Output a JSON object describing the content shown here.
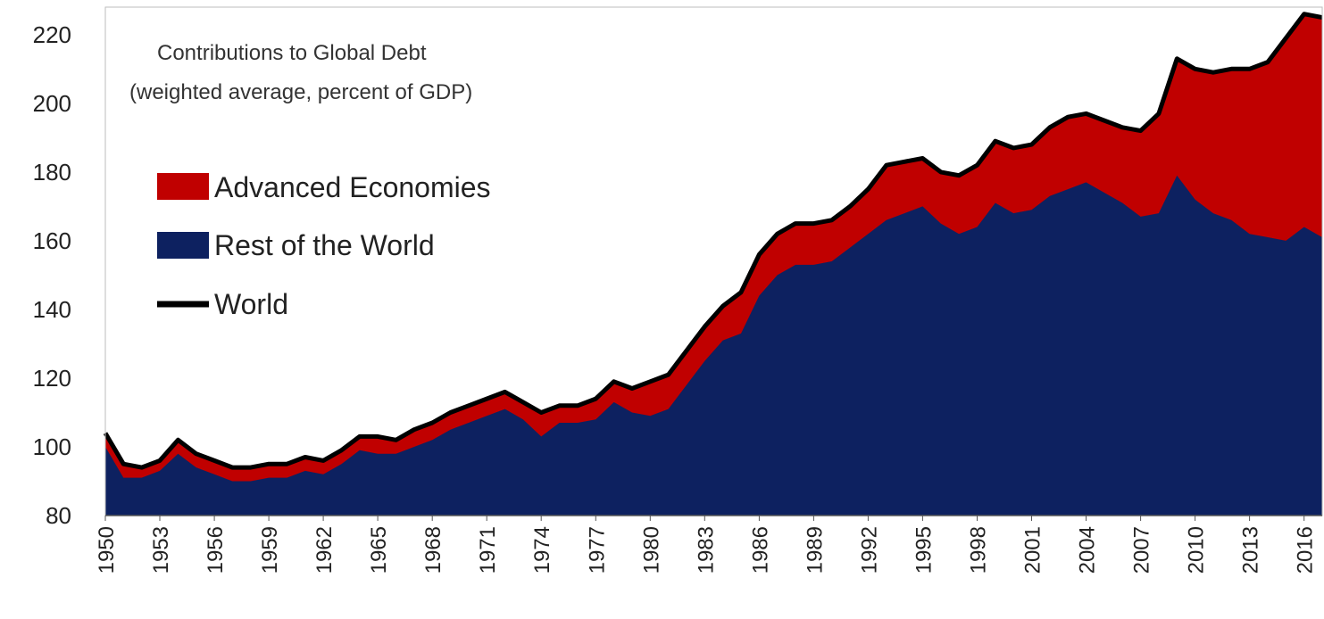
{
  "chart_data": {
    "type": "area",
    "title_lines": [
      "Contributions to Global Debt",
      "(weighted average, percent of GDP)"
    ],
    "xlabel": "",
    "ylabel": "",
    "ylim": [
      80,
      228
    ],
    "y_ticks": [
      80,
      100,
      120,
      140,
      160,
      180,
      200,
      220
    ],
    "x_ticks": [
      1950,
      1953,
      1956,
      1959,
      1962,
      1965,
      1968,
      1971,
      1974,
      1977,
      1980,
      1983,
      1986,
      1989,
      1992,
      1995,
      1998,
      2001,
      2004,
      2007,
      2010,
      2013,
      2016
    ],
    "x_tick_labels": [
      "1950",
      "1953",
      "1956",
      "1959",
      "1962",
      "1965",
      "1968",
      "1971",
      "1974",
      "1977",
      "1980",
      "1983",
      "1986",
      "1989",
      "1992",
      "1995",
      "1998",
      "2001",
      "2004",
      "2007",
      "2010",
      "2013",
      "2016"
    ],
    "x": [
      1950,
      1951,
      1952,
      1953,
      1954,
      1955,
      1956,
      1957,
      1958,
      1959,
      1960,
      1961,
      1962,
      1963,
      1964,
      1965,
      1966,
      1967,
      1968,
      1969,
      1970,
      1971,
      1972,
      1973,
      1974,
      1975,
      1976,
      1977,
      1978,
      1979,
      1980,
      1981,
      1982,
      1983,
      1984,
      1985,
      1986,
      1987,
      1988,
      1989,
      1990,
      1991,
      1992,
      1993,
      1994,
      1995,
      1996,
      1997,
      1998,
      1999,
      2000,
      2001,
      2002,
      2003,
      2004,
      2005,
      2006,
      2007,
      2008,
      2009,
      2010,
      2011,
      2012,
      2013,
      2014,
      2015,
      2016,
      2017
    ],
    "grid": false,
    "legend_position": "left",
    "series": [
      {
        "name": "Advanced Economies",
        "kind": "area",
        "color": "#0d2160",
        "values": [
          100,
          91,
          91,
          93,
          98,
          94,
          92,
          90,
          90,
          91,
          91,
          93,
          92,
          95,
          99,
          98,
          98,
          100,
          102,
          105,
          107,
          109,
          111,
          108,
          103,
          107,
          107,
          108,
          113,
          110,
          109,
          111,
          118,
          125,
          131,
          133,
          144,
          150,
          153,
          153,
          154,
          158,
          162,
          166,
          168,
          170,
          165,
          162,
          164,
          171,
          168,
          169,
          173,
          175,
          177,
          174,
          171,
          167,
          168,
          179,
          172,
          168,
          166,
          162,
          161,
          160,
          164,
          161
        ]
      },
      {
        "name": "Rest of the World",
        "kind": "area",
        "color": "#c00000",
        "values": [
          104,
          95,
          94,
          96,
          102,
          98,
          96,
          94,
          94,
          95,
          95,
          97,
          96,
          99,
          103,
          103,
          102,
          105,
          107,
          110,
          112,
          114,
          116,
          113,
          110,
          112,
          112,
          114,
          119,
          117,
          119,
          121,
          128,
          135,
          141,
          145,
          156,
          162,
          165,
          165,
          166,
          170,
          175,
          182,
          183,
          184,
          180,
          179,
          182,
          189,
          187,
          188,
          193,
          196,
          197,
          195,
          193,
          192,
          197,
          213,
          210,
          209,
          210,
          210,
          212,
          219,
          226,
          225
        ]
      },
      {
        "name": "World",
        "kind": "line",
        "color": "#000000",
        "values": [
          104,
          95,
          94,
          96,
          102,
          98,
          96,
          94,
          94,
          95,
          95,
          97,
          96,
          99,
          103,
          103,
          102,
          105,
          107,
          110,
          112,
          114,
          116,
          113,
          110,
          112,
          112,
          114,
          119,
          117,
          119,
          121,
          128,
          135,
          141,
          145,
          156,
          162,
          165,
          165,
          166,
          170,
          175,
          182,
          183,
          184,
          180,
          179,
          182,
          189,
          187,
          188,
          193,
          196,
          197,
          195,
          193,
          192,
          197,
          213,
          210,
          209,
          210,
          210,
          212,
          219,
          226,
          225
        ]
      }
    ]
  }
}
